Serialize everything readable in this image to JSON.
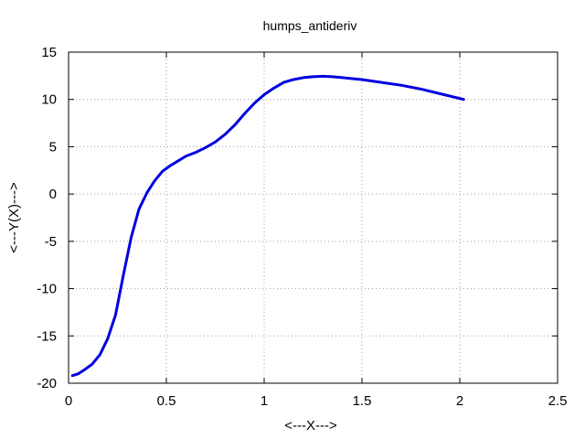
{
  "chart_data": {
    "type": "line",
    "title": "humps_antideriv",
    "xlabel": "<---X--->",
    "ylabel": "<---Y(X)--->",
    "xlim": [
      0,
      2.5
    ],
    "ylim": [
      -20,
      15
    ],
    "xticks": [
      0,
      0.5,
      1,
      1.5,
      2,
      2.5
    ],
    "xtick_labels": [
      "0",
      "0.5",
      "1",
      "1.5",
      "2",
      "2.5"
    ],
    "yticks": [
      -20,
      -15,
      -10,
      -5,
      0,
      5,
      10,
      15
    ],
    "ytick_labels": [
      "-20",
      "-15",
      "-10",
      "-5",
      "0",
      "5",
      "10",
      "15"
    ],
    "grid": true,
    "series": [
      {
        "color": "#0000e0",
        "x": [
          0.02,
          0.05,
          0.08,
          0.12,
          0.16,
          0.2,
          0.24,
          0.28,
          0.32,
          0.36,
          0.4,
          0.44,
          0.48,
          0.52,
          0.56,
          0.6,
          0.65,
          0.7,
          0.75,
          0.8,
          0.85,
          0.9,
          0.95,
          1.0,
          1.05,
          1.1,
          1.15,
          1.2,
          1.25,
          1.3,
          1.35,
          1.4,
          1.45,
          1.5,
          1.6,
          1.7,
          1.8,
          1.9,
          2.02
        ],
        "y": [
          -19.2,
          -19.0,
          -18.6,
          -18.0,
          -17.0,
          -15.3,
          -12.8,
          -8.6,
          -4.6,
          -1.6,
          0.1,
          1.4,
          2.4,
          3.0,
          3.5,
          4.0,
          4.4,
          4.9,
          5.5,
          6.3,
          7.3,
          8.5,
          9.6,
          10.5,
          11.2,
          11.8,
          12.1,
          12.3,
          12.4,
          12.45,
          12.4,
          12.3,
          12.2,
          12.1,
          11.8,
          11.5,
          11.1,
          10.6,
          10.0
        ]
      }
    ]
  }
}
